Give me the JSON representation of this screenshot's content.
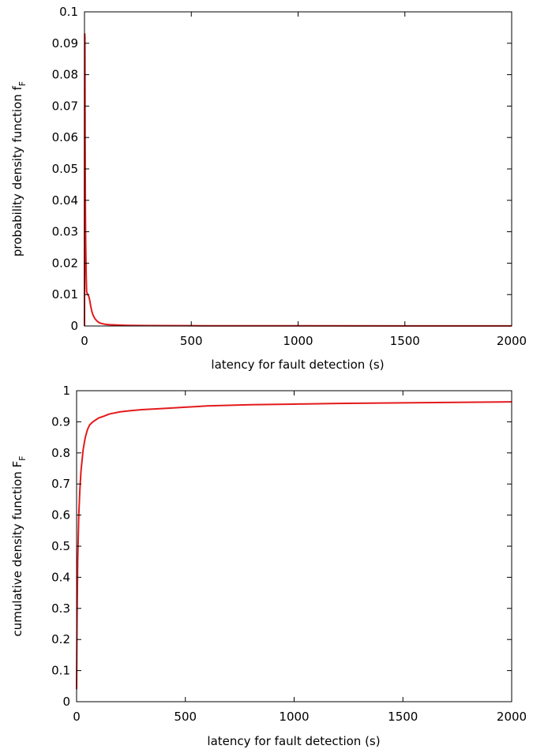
{
  "chart_data": [
    {
      "type": "line",
      "xlabel": "latency for fault detection (s)",
      "ylabel": "probability density function f",
      "ylabel_subscript": "F",
      "xlim": [
        0,
        2000
      ],
      "ylim": [
        0,
        0.1
      ],
      "xticks": [
        0,
        500,
        1000,
        1500,
        2000
      ],
      "xtick_labels": [
        "0",
        "500",
        "1000",
        "1500",
        "2000"
      ],
      "yticks": [
        0,
        0.01,
        0.02,
        0.03,
        0.04,
        0.05,
        0.06,
        0.07,
        0.08,
        0.09,
        0.1
      ],
      "ytick_labels": [
        "0",
        "0.01",
        "0.02",
        "0.03",
        "0.04",
        "0.05",
        "0.06",
        "0.07",
        "0.08",
        "0.09",
        "0.1"
      ],
      "grid": false,
      "series": [
        {
          "color": "#e41a1c",
          "x": [
            0,
            1,
            2,
            3,
            4,
            5,
            6,
            8,
            10,
            12,
            15,
            20,
            25,
            30,
            35,
            40,
            45,
            50,
            60,
            70,
            80,
            100,
            120,
            150,
            200,
            300,
            500,
            1000,
            1500,
            2000
          ],
          "y": [
            0.0,
            0.093,
            0.092,
            0.06,
            0.04,
            0.03,
            0.025,
            0.016,
            0.011,
            0.0105,
            0.01,
            0.0095,
            0.008,
            0.006,
            0.0045,
            0.0035,
            0.0028,
            0.0022,
            0.0015,
            0.001,
            0.0008,
            0.0005,
            0.0004,
            0.0003,
            0.0002,
            0.00012,
            8e-05,
            5e-05,
            3e-05,
            2e-05
          ]
        }
      ]
    },
    {
      "type": "line",
      "xlabel": "latency for fault detection (s)",
      "ylabel": "cumulative density function F",
      "ylabel_subscript": "F",
      "xlim": [
        0,
        2000
      ],
      "ylim": [
        0,
        1
      ],
      "xticks": [
        0,
        500,
        1000,
        1500,
        2000
      ],
      "xtick_labels": [
        "0",
        "500",
        "1000",
        "1500",
        "2000"
      ],
      "yticks": [
        0,
        0.1,
        0.2,
        0.3,
        0.4,
        0.5,
        0.6,
        0.7,
        0.8,
        0.9,
        1
      ],
      "ytick_labels": [
        "0",
        "0.1",
        "0.2",
        "0.3",
        "0.4",
        "0.5",
        "0.6",
        "0.7",
        "0.8",
        "0.9",
        "1"
      ],
      "grid": false,
      "series": [
        {
          "color": "#e41a1c",
          "x": [
            0,
            2,
            5,
            10,
            15,
            20,
            30,
            40,
            50,
            60,
            75,
            90,
            100,
            125,
            150,
            200,
            250,
            300,
            400,
            500,
            600,
            800,
            1000,
            1200,
            1500,
            1800,
            2000
          ],
          "y": [
            0.04,
            0.25,
            0.45,
            0.6,
            0.68,
            0.74,
            0.81,
            0.85,
            0.875,
            0.89,
            0.9,
            0.907,
            0.912,
            0.918,
            0.925,
            0.932,
            0.936,
            0.939,
            0.943,
            0.947,
            0.951,
            0.955,
            0.957,
            0.959,
            0.961,
            0.963,
            0.964
          ]
        }
      ]
    }
  ]
}
